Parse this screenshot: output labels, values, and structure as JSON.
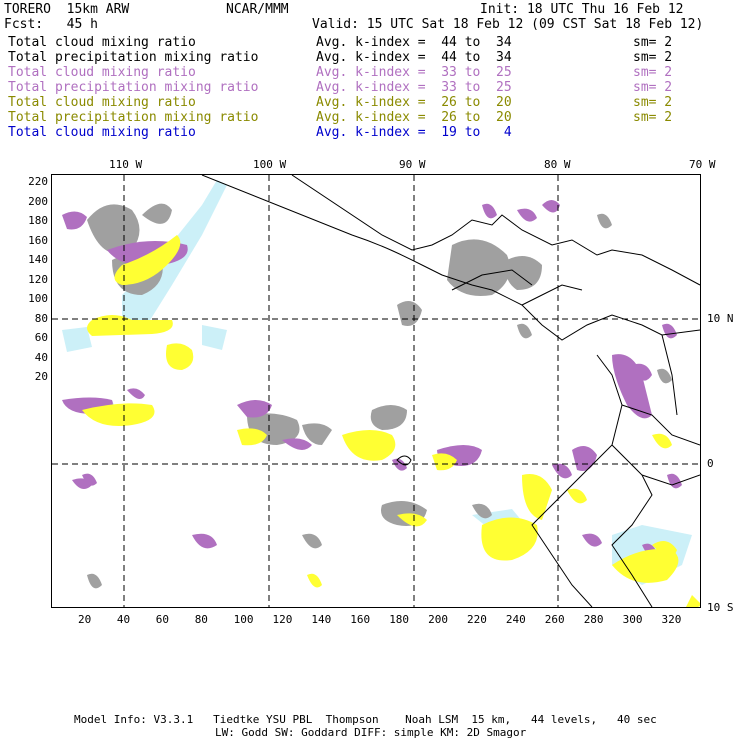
{
  "header": {
    "model": "TORERO  15km ARW",
    "org": "NCAR/MMM",
    "init": "Init: 18 UTC Thu 16 Feb 12",
    "fcst": "Fcst:   45 h",
    "valid": "Valid: 15 UTC Sat 18 Feb 12 (09 CST Sat 18 Feb 12)"
  },
  "legend": [
    {
      "field": "Total cloud mixing ratio",
      "stat": "Avg. k-index =  44 to  34",
      "sm": "sm= 2",
      "color": "#000000"
    },
    {
      "field": "Total precipitation mixing ratio",
      "stat": "Avg. k-index =  44 to  34",
      "sm": "sm= 2",
      "color": "#000000"
    },
    {
      "field": "Total cloud mixing ratio",
      "stat": "Avg. k-index =  33 to  25",
      "sm": "sm= 2",
      "color": "#b070c0"
    },
    {
      "field": "Total precipitation mixing ratio",
      "stat": "Avg. k-index =  33 to  25",
      "sm": "sm= 2",
      "color": "#b070c0"
    },
    {
      "field": "Total cloud mixing ratio",
      "stat": "Avg. k-index =  26 to  20",
      "sm": "sm= 2",
      "color": "#8a8a00"
    },
    {
      "field": "Total precipitation mixing ratio",
      "stat": "Avg. k-index =  26 to  20",
      "sm": "sm= 2",
      "color": "#8a8a00"
    },
    {
      "field": "Total cloud mixing ratio",
      "stat": "Avg. k-index =  19 to   4",
      "sm": "",
      "color": "#0000cc"
    }
  ],
  "map": {
    "lon_labels": [
      "110 W",
      "100 W",
      "90 W",
      "80 W",
      "70 W"
    ],
    "lat_labels": [
      "10 N",
      "0",
      "10 S"
    ],
    "x_ticks": [
      "20",
      "40",
      "60",
      "80",
      "100",
      "120",
      "140",
      "160",
      "180",
      "200",
      "220",
      "240",
      "260",
      "280",
      "300",
      "320"
    ],
    "y_ticks": [
      "220",
      "200",
      "180",
      "160",
      "140",
      "120",
      "100",
      "80",
      "60",
      "40",
      "20"
    ],
    "colors": {
      "gray": "#a0a0a0",
      "purple": "#b070c0",
      "yellow": "#ffff33",
      "light_blue": "#ccf0f8"
    }
  },
  "footer": {
    "line1": "Model Info: V3.3.1   Tiedtke YSU PBL  Thompson    Noah LSM  15 km,   44 levels,   40 sec",
    "line2": "LW: Godd SW: Goddard DIFF: simple KM: 2D Smagor"
  }
}
